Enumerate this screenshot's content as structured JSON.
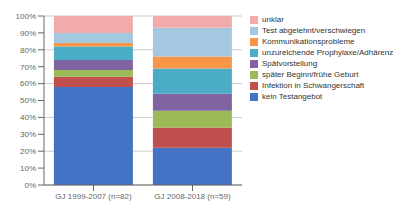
{
  "chart_data": {
    "type": "bar",
    "stacked": true,
    "categories": [
      "GJ 1999-2007 (n=82)",
      "GJ 2008-2018 (n=59)"
    ],
    "series": [
      {
        "name": "kein Testangebot",
        "color": "#4472C4",
        "values": [
          58,
          22
        ]
      },
      {
        "name": "Infektion in Schwangerschaft",
        "color": "#C0504D",
        "values": [
          6,
          12
        ]
      },
      {
        "name": "später Beginn/frühe Geburt",
        "color": "#9BBB59",
        "values": [
          4,
          10
        ]
      },
      {
        "name": "Spätvorstellung",
        "color": "#8064A2",
        "values": [
          6,
          10
        ]
      },
      {
        "name": "unzureichende Prophylaxe/Adhärenz",
        "color": "#4BACC6",
        "values": [
          8,
          15
        ]
      },
      {
        "name": "Kommunikationsprobleme",
        "color": "#F79646",
        "values": [
          2,
          7
        ]
      },
      {
        "name": "Test abgelehnt/verschwiegen",
        "color": "#A5C8E1",
        "values": [
          6,
          17
        ]
      },
      {
        "name": "unklar",
        "color": "#F2ABAB",
        "values": [
          10,
          7
        ]
      }
    ],
    "ylim": [
      0,
      100
    ],
    "yticks": [
      {
        "value": 0,
        "label": "0%"
      },
      {
        "value": 10,
        "label": "10%"
      },
      {
        "value": 20,
        "label": "20%"
      },
      {
        "value": 30,
        "label": "30%"
      },
      {
        "value": 40,
        "label": "40%"
      },
      {
        "value": 50,
        "label": "50%"
      },
      {
        "value": 60,
        "label": "60%"
      },
      {
        "value": 70,
        "label": "70%"
      },
      {
        "value": 80,
        "label": "80%"
      },
      {
        "value": 90,
        "label": "90%"
      },
      {
        "value": 100,
        "label": "100%"
      }
    ],
    "grid": true,
    "legend": "right"
  }
}
